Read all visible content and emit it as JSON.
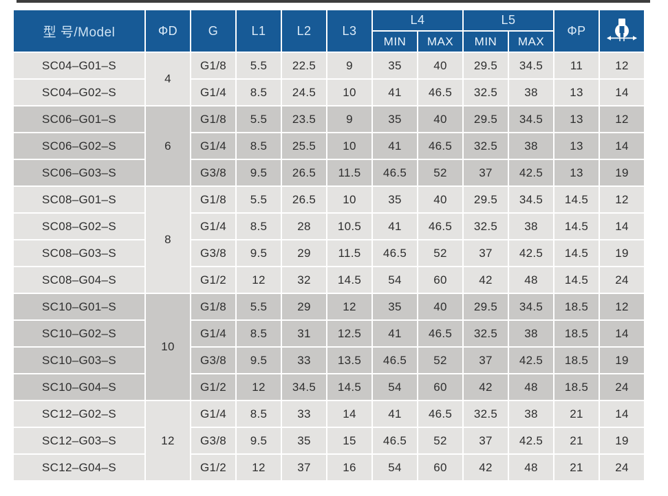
{
  "colors": {
    "header_blue": "#175a96",
    "header_text": "#dcebf8",
    "row_light_gray": "#e4e3e1",
    "row_dark_gray": "#c9c8c6",
    "body_text": "#2e2e2e",
    "top_bar": "#3d3d3d",
    "gridline": "#ffffff"
  },
  "icons": {
    "last_column": "wrench-flats-dimension-icon"
  },
  "table": {
    "columns": {
      "model": "型 号/Model",
      "phi_d": "ΦD",
      "g": "G",
      "l1": "L1",
      "l2": "L2",
      "l3": "L3",
      "l4": "L4",
      "l5": "L5",
      "min": "MIN",
      "max": "MAX",
      "phi_p": "ΦP"
    },
    "groups": [
      {
        "phi_d": "4",
        "shade": "light",
        "rows": [
          {
            "model": "SC04–G01–S",
            "g": "G1/8",
            "l1": "5.5",
            "l2": "22.5",
            "l3": "9",
            "l4_min": "35",
            "l4_max": "40",
            "l5_min": "29.5",
            "l5_max": "34.5",
            "phi_p": "11",
            "wrench": "12"
          },
          {
            "model": "SC04–G02–S",
            "g": "G1/4",
            "l1": "8.5",
            "l2": "24.5",
            "l3": "10",
            "l4_min": "41",
            "l4_max": "46.5",
            "l5_min": "32.5",
            "l5_max": "38",
            "phi_p": "13",
            "wrench": "14"
          }
        ]
      },
      {
        "phi_d": "6",
        "shade": "dark",
        "rows": [
          {
            "model": "SC06–G01–S",
            "g": "G1/8",
            "l1": "5.5",
            "l2": "23.5",
            "l3": "9",
            "l4_min": "35",
            "l4_max": "40",
            "l5_min": "29.5",
            "l5_max": "34.5",
            "phi_p": "13",
            "wrench": "12"
          },
          {
            "model": "SC06–G02–S",
            "g": "G1/4",
            "l1": "8.5",
            "l2": "25.5",
            "l3": "10",
            "l4_min": "41",
            "l4_max": "46.5",
            "l5_min": "32.5",
            "l5_max": "38",
            "phi_p": "13",
            "wrench": "14"
          },
          {
            "model": "SC06–G03–S",
            "g": "G3/8",
            "l1": "9.5",
            "l2": "26.5",
            "l3": "11.5",
            "l4_min": "46.5",
            "l4_max": "52",
            "l5_min": "37",
            "l5_max": "42.5",
            "phi_p": "13",
            "wrench": "19"
          }
        ]
      },
      {
        "phi_d": "8",
        "shade": "light",
        "rows": [
          {
            "model": "SC08–G01–S",
            "g": "G1/8",
            "l1": "5.5",
            "l2": "26.5",
            "l3": "10",
            "l4_min": "35",
            "l4_max": "40",
            "l5_min": "29.5",
            "l5_max": "34.5",
            "phi_p": "14.5",
            "wrench": "12"
          },
          {
            "model": "SC08–G02–S",
            "g": "G1/4",
            "l1": "8.5",
            "l2": "28",
            "l3": "10.5",
            "l4_min": "41",
            "l4_max": "46.5",
            "l5_min": "32.5",
            "l5_max": "38",
            "phi_p": "14.5",
            "wrench": "14"
          },
          {
            "model": "SC08–G03–S",
            "g": "G3/8",
            "l1": "9.5",
            "l2": "29",
            "l3": "11.5",
            "l4_min": "46.5",
            "l4_max": "52",
            "l5_min": "37",
            "l5_max": "42.5",
            "phi_p": "14.5",
            "wrench": "19"
          },
          {
            "model": "SC08–G04–S",
            "g": "G1/2",
            "l1": "12",
            "l2": "32",
            "l3": "14.5",
            "l4_min": "54",
            "l4_max": "60",
            "l5_min": "42",
            "l5_max": "48",
            "phi_p": "14.5",
            "wrench": "24"
          }
        ]
      },
      {
        "phi_d": "10",
        "shade": "dark",
        "rows": [
          {
            "model": "SC10–G01–S",
            "g": "G1/8",
            "l1": "5.5",
            "l2": "29",
            "l3": "12",
            "l4_min": "35",
            "l4_max": "40",
            "l5_min": "29.5",
            "l5_max": "34.5",
            "phi_p": "18.5",
            "wrench": "12"
          },
          {
            "model": "SC10–G02–S",
            "g": "G1/4",
            "l1": "8.5",
            "l2": "31",
            "l3": "12.5",
            "l4_min": "41",
            "l4_max": "46.5",
            "l5_min": "32.5",
            "l5_max": "38",
            "phi_p": "18.5",
            "wrench": "14"
          },
          {
            "model": "SC10–G03–S",
            "g": "G3/8",
            "l1": "9.5",
            "l2": "33",
            "l3": "13.5",
            "l4_min": "46.5",
            "l4_max": "52",
            "l5_min": "37",
            "l5_max": "42.5",
            "phi_p": "18.5",
            "wrench": "19"
          },
          {
            "model": "SC10–G04–S",
            "g": "G1/2",
            "l1": "12",
            "l2": "34.5",
            "l3": "14.5",
            "l4_min": "54",
            "l4_max": "60",
            "l5_min": "42",
            "l5_max": "48",
            "phi_p": "18.5",
            "wrench": "24"
          }
        ]
      },
      {
        "phi_d": "12",
        "shade": "light",
        "rows": [
          {
            "model": "SC12–G02–S",
            "g": "G1/4",
            "l1": "8.5",
            "l2": "33",
            "l3": "14",
            "l4_min": "41",
            "l4_max": "46.5",
            "l5_min": "32.5",
            "l5_max": "38",
            "phi_p": "21",
            "wrench": "14"
          },
          {
            "model": "SC12–G03–S",
            "g": "G3/8",
            "l1": "9.5",
            "l2": "35",
            "l3": "15",
            "l4_min": "46.5",
            "l4_max": "52",
            "l5_min": "37",
            "l5_max": "42.5",
            "phi_p": "21",
            "wrench": "19"
          },
          {
            "model": "SC12–G04–S",
            "g": "G1/2",
            "l1": "12",
            "l2": "37",
            "l3": "16",
            "l4_min": "54",
            "l4_max": "60",
            "l5_min": "42",
            "l5_max": "48",
            "phi_p": "21",
            "wrench": "24"
          }
        ]
      }
    ]
  }
}
